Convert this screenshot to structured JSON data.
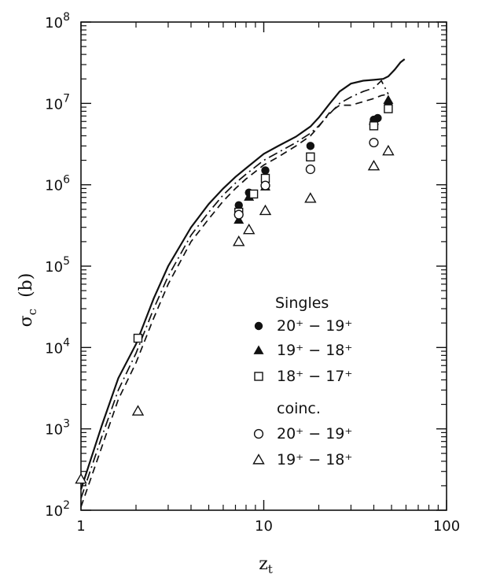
{
  "chart_data": {
    "type": "scatter",
    "xscale": "log",
    "yscale": "log",
    "xlim": [
      1,
      100
    ],
    "ylim": [
      100,
      100000000
    ],
    "xlabel": {
      "main": "z",
      "sub": "t"
    },
    "ylabel": {
      "main": "σ",
      "sub": "c",
      "unit": "(b)"
    },
    "x_ticks": [
      {
        "value": 1,
        "label": "1"
      },
      {
        "value": 10,
        "label": "10"
      },
      {
        "value": 100,
        "label": "100"
      }
    ],
    "y_ticks": [
      {
        "value": 100,
        "base": "10",
        "exp": "2"
      },
      {
        "value": 1000,
        "base": "10",
        "exp": "3"
      },
      {
        "value": 10000,
        "base": "10",
        "exp": "4"
      },
      {
        "value": 100000,
        "base": "10",
        "exp": "5"
      },
      {
        "value": 1000000,
        "base": "10",
        "exp": "6"
      },
      {
        "value": 10000000,
        "base": "10",
        "exp": "7"
      },
      {
        "value": 100000000,
        "base": "10",
        "exp": "8"
      }
    ],
    "legend": {
      "position": "center-right",
      "heading_singles": "Singles",
      "heading_coinc": "coinc.",
      "entries": [
        {
          "series": 0,
          "label": "20⁺ − 19⁺",
          "group": "singles"
        },
        {
          "series": 1,
          "label": "19⁺ − 18⁺",
          "group": "singles"
        },
        {
          "series": 2,
          "label": "18⁺ − 17⁺",
          "group": "singles"
        },
        {
          "series": 3,
          "label": "20⁺ − 19⁺",
          "group": "coinc"
        },
        {
          "series": 4,
          "label": "19⁺ − 18⁺",
          "group": "coinc"
        }
      ]
    },
    "series": [
      {
        "marker": "filled-circle",
        "points": [
          [
            7.3,
            560000
          ],
          [
            8.3,
            800000
          ],
          [
            10.2,
            1500000
          ],
          [
            18,
            3000000
          ],
          [
            40,
            6300000
          ],
          [
            42,
            6600000
          ],
          [
            48,
            10000000
          ]
        ]
      },
      {
        "marker": "filled-triangle",
        "points": [
          [
            7.3,
            370000
          ],
          [
            8.3,
            710000
          ],
          [
            10.2,
            950000
          ],
          [
            40,
            6100000
          ],
          [
            48,
            11000000
          ]
        ]
      },
      {
        "marker": "open-square",
        "points": [
          [
            2.05,
            13000
          ],
          [
            7.3,
            460000
          ],
          [
            8.8,
            770000
          ],
          [
            10.2,
            1200000
          ],
          [
            18,
            2200000
          ],
          [
            40,
            5300000
          ],
          [
            48,
            8600000
          ]
        ]
      },
      {
        "marker": "open-circle",
        "points": [
          [
            7.3,
            430000
          ],
          [
            10.2,
            980000
          ],
          [
            18,
            1550000
          ],
          [
            40,
            3300000
          ]
        ]
      },
      {
        "marker": "open-triangle",
        "points": [
          [
            1,
            240
          ],
          [
            2.05,
            1650
          ],
          [
            7.3,
            200000
          ],
          [
            8.3,
            280000
          ],
          [
            10.2,
            480000
          ],
          [
            18,
            680000
          ],
          [
            40,
            1700000
          ],
          [
            48,
            2600000
          ]
        ]
      }
    ],
    "curves": [
      {
        "style": "solid",
        "points": [
          [
            1,
            180
          ],
          [
            1.3,
            1100
          ],
          [
            1.6,
            4200
          ],
          [
            2,
            11000
          ],
          [
            2.5,
            40000
          ],
          [
            3,
            100000
          ],
          [
            4,
            300000
          ],
          [
            5,
            580000
          ],
          [
            6,
            900000
          ],
          [
            7,
            1250000
          ],
          [
            8,
            1600000
          ],
          [
            10,
            2400000
          ],
          [
            12,
            3000000
          ],
          [
            15,
            3900000
          ],
          [
            18,
            5200000
          ],
          [
            20,
            6700000
          ],
          [
            23,
            10000000
          ],
          [
            26,
            14000000
          ],
          [
            30,
            17500000
          ],
          [
            35,
            19000000
          ],
          [
            40,
            19500000
          ],
          [
            45,
            20000000
          ],
          [
            48,
            21500000
          ],
          [
            52,
            26000000
          ],
          [
            56,
            32000000
          ],
          [
            59,
            35000000
          ]
        ]
      },
      {
        "style": "dash-dot",
        "points": [
          [
            1,
            140
          ],
          [
            1.3,
            800
          ],
          [
            1.6,
            3000
          ],
          [
            2,
            8500
          ],
          [
            2.5,
            30000
          ],
          [
            3,
            75000
          ],
          [
            4,
            240000
          ],
          [
            5,
            460000
          ],
          [
            6,
            750000
          ],
          [
            7,
            1050000
          ],
          [
            8,
            1350000
          ],
          [
            10,
            2000000
          ],
          [
            12,
            2500000
          ],
          [
            15,
            3300000
          ],
          [
            18,
            4300000
          ],
          [
            20,
            5300000
          ],
          [
            23,
            7500000
          ],
          [
            26,
            10000000
          ],
          [
            30,
            12000000
          ],
          [
            35,
            14000000
          ],
          [
            40,
            15500000
          ],
          [
            44,
            19000000
          ],
          [
            48,
            13000000
          ]
        ]
      },
      {
        "style": "dashed",
        "points": [
          [
            1,
            110
          ],
          [
            1.3,
            600
          ],
          [
            1.6,
            2300
          ],
          [
            2,
            6500
          ],
          [
            2.5,
            23000
          ],
          [
            3,
            60000
          ],
          [
            4,
            200000
          ],
          [
            5,
            380000
          ],
          [
            6,
            630000
          ],
          [
            7,
            900000
          ],
          [
            8,
            1180000
          ],
          [
            10,
            1750000
          ],
          [
            12,
            2200000
          ],
          [
            15,
            3000000
          ],
          [
            18,
            4000000
          ],
          [
            20,
            5200000
          ],
          [
            23,
            7800000
          ],
          [
            26,
            9500000
          ],
          [
            30,
            9500000
          ],
          [
            35,
            10500000
          ],
          [
            40,
            11500000
          ],
          [
            44,
            12500000
          ],
          [
            48,
            13000000
          ]
        ]
      }
    ]
  }
}
